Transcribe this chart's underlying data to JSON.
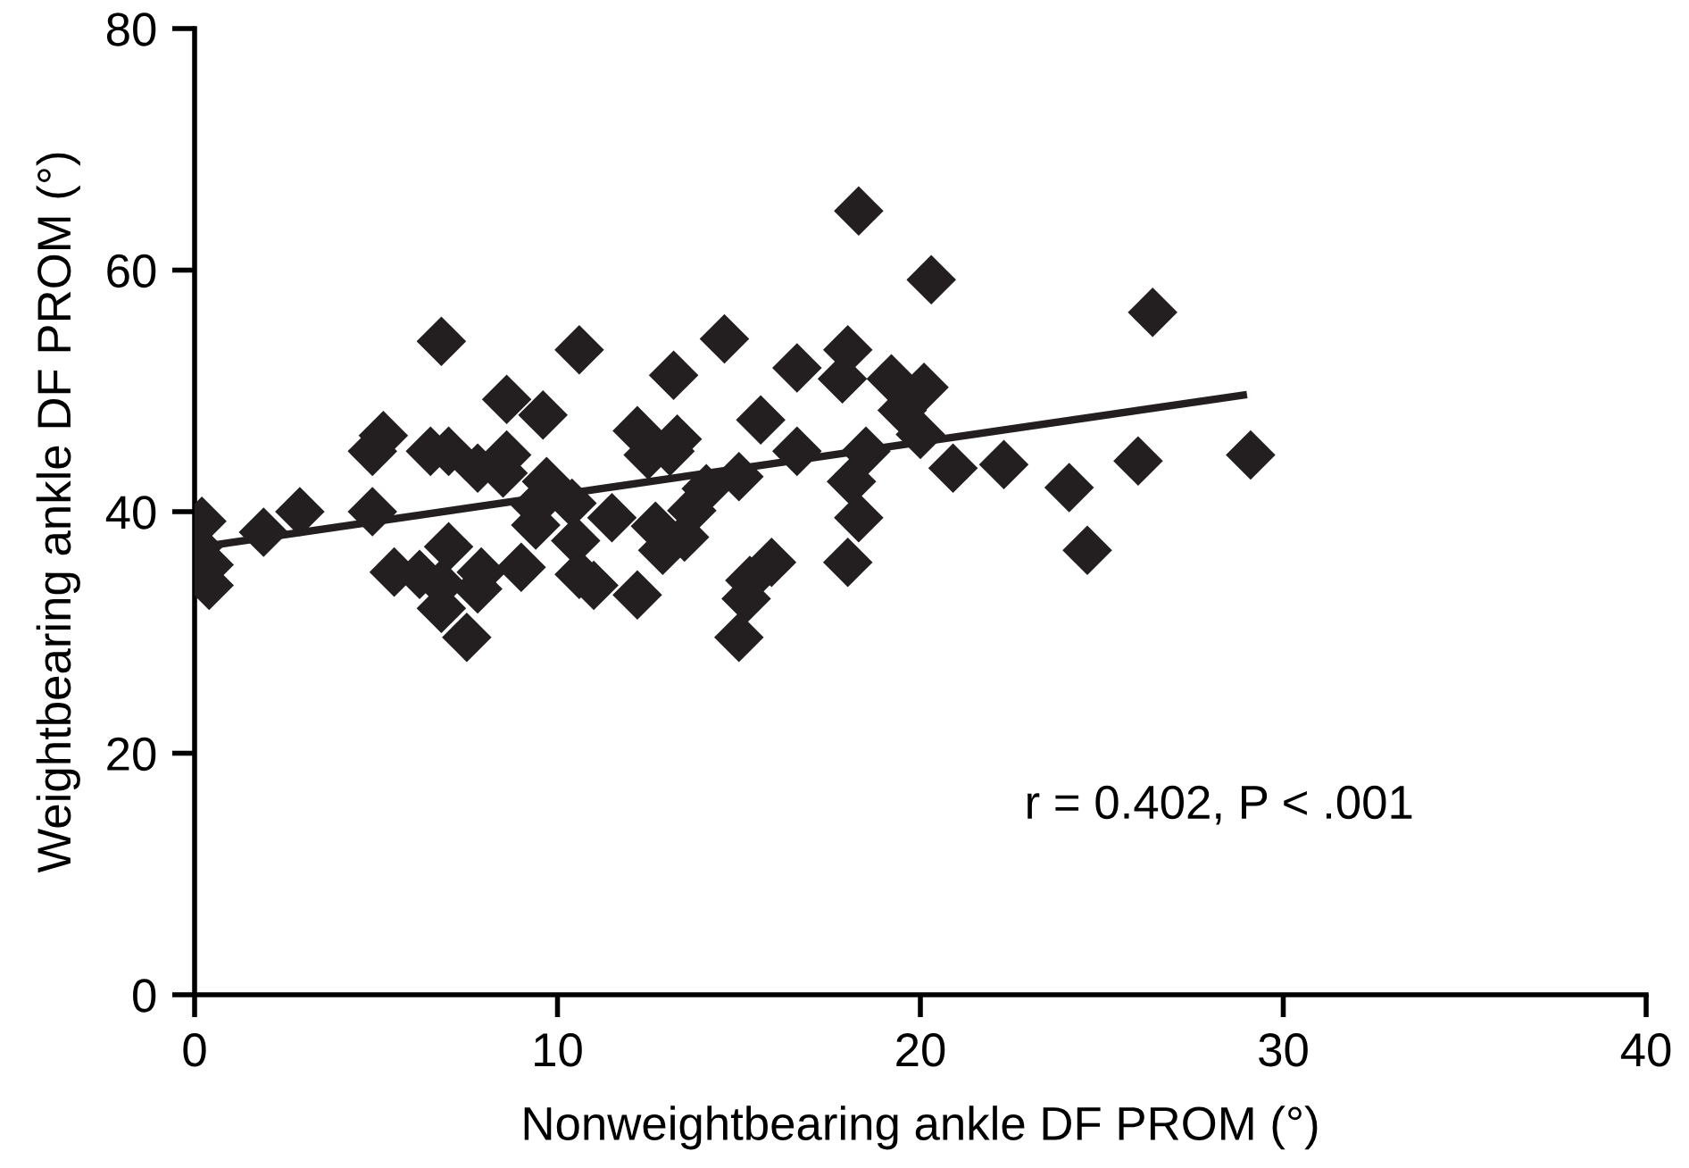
{
  "chart_data": {
    "type": "scatter",
    "xlabel": "Nonweightbearing ankle DF PROM (°)",
    "ylabel": "Weightbearing ankle DF PROM (°)",
    "annotations": [
      "r = 0.402, P < .001"
    ],
    "xlim": [
      0,
      40
    ],
    "ylim": [
      0,
      80
    ],
    "xticks": [
      0,
      10,
      20,
      30,
      40
    ],
    "yticks": [
      0,
      20,
      40,
      60,
      80
    ],
    "grid": false,
    "legend": false,
    "series": [
      {
        "marker": "diamond",
        "color": "#231f20",
        "x": [
          0.2,
          0.1,
          0.4,
          0.4,
          1.9,
          2.9,
          4.9,
          4.9,
          5.2,
          6.8,
          6.5,
          7.0,
          5.5,
          6.2,
          6.8,
          7.0,
          6.8,
          7.5,
          7.8,
          7.9,
          7.8,
          8.5,
          9.4,
          9.7,
          8.6,
          8.6,
          9.6,
          9.0,
          9.4,
          10.6,
          10.4,
          10.5,
          10.6,
          11.0,
          11.5,
          12.2,
          12.2,
          12.5,
          12.7,
          12.9,
          13.1,
          13.2,
          13.3,
          13.5,
          13.7,
          14.1,
          14.6,
          15.0,
          15.0,
          15.2,
          15.3,
          15.6,
          15.9,
          16.6,
          16.6,
          18.3,
          18.0,
          17.85,
          18.0,
          18.3,
          18.1,
          18.5,
          19.2,
          19.5,
          20.0,
          20.3,
          20.1,
          20.9,
          22.3,
          24.1,
          24.6,
          26.4,
          26.0,
          29.1
        ],
        "values": [
          39.2,
          37.1,
          35.6,
          33.9,
          38.3,
          40.0,
          40.0,
          45.0,
          46.3,
          54.1,
          45.0,
          45.0,
          35.0,
          34.8,
          34.0,
          37.1,
          32.0,
          29.6,
          33.6,
          35.0,
          43.6,
          43.2,
          40.5,
          42.5,
          44.7,
          49.3,
          48.0,
          35.4,
          38.9,
          53.4,
          40.7,
          37.6,
          34.8,
          33.9,
          39.5,
          33.1,
          46.7,
          44.7,
          38.8,
          36.8,
          45.0,
          51.3,
          46.0,
          37.9,
          40.1,
          41.9,
          54.3,
          42.9,
          29.6,
          32.8,
          34.3,
          47.6,
          35.8,
          51.9,
          45.0,
          64.9,
          53.4,
          51.0,
          35.8,
          39.5,
          42.5,
          45.0,
          51.0,
          48.4,
          46.4,
          59.2,
          50.3,
          43.6,
          43.9,
          42.0,
          36.8,
          56.5,
          44.2,
          44.7
        ]
      },
      {
        "type": "line",
        "marker": "none",
        "color": "#231f20",
        "x": [
          0,
          29
        ],
        "values": [
          37.0,
          49.7
        ]
      }
    ]
  }
}
